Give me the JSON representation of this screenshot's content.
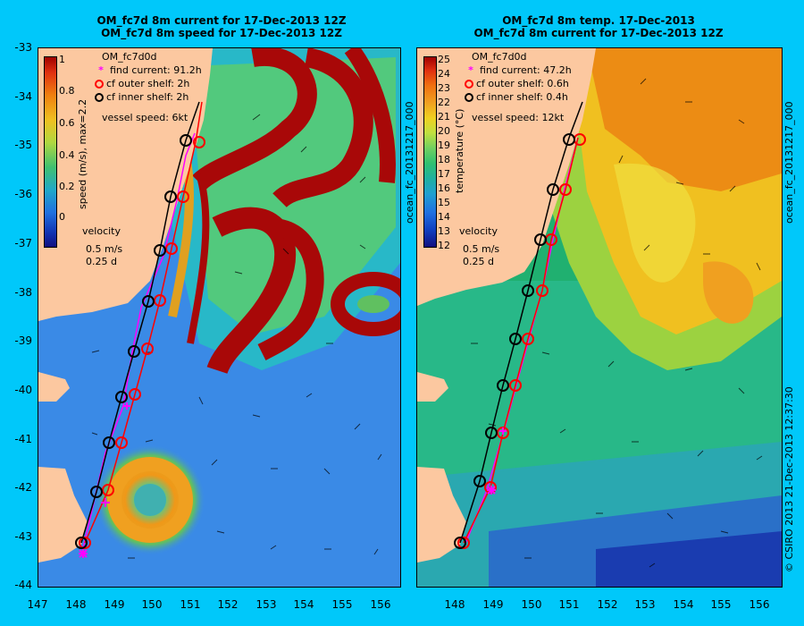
{
  "left": {
    "title1": "OM_fc7d 8m current for 17-Dec-2013 12Z",
    "title2": "OM_fc7d 8m speed for 17-Dec-2013 12Z",
    "model": "OM_fc7d0d",
    "legend": [
      "find current: 91.2h",
      "cf outer shelf: 2h",
      "cf inner shelf: 2h"
    ],
    "vessel": "vessel speed: 6kt",
    "cbar_label": "speed (m/s),  max=2.2",
    "cbar_ticks": [
      "1",
      "0.8",
      "0.6",
      "0.4",
      "0.2",
      "0"
    ],
    "velocity": "velocity",
    "vel_scale": "0.5 m/s",
    "vel_time": "0.25 d"
  },
  "right": {
    "title1": "OM_fc7d 8m temp. 17-Dec-2013",
    "title2": "OM_fc7d 8m current for 17-Dec-2013 12Z",
    "model": "OM_fc7d0d",
    "legend": [
      "find current: 47.2h",
      "cf outer shelf: 0.6h",
      "cf inner shelf: 0.4h"
    ],
    "vessel": "vessel speed: 12kt",
    "cbar_label": "temperature (°C)",
    "cbar_ticks": [
      "25",
      "24",
      "23",
      "22",
      "21",
      "20",
      "19",
      "18",
      "17",
      "16",
      "15",
      "14",
      "13",
      "12"
    ],
    "velocity": "velocity",
    "vel_scale": "0.5 m/s",
    "vel_time": "0.25 d"
  },
  "side_left": "ocean_fc_20131217_000",
  "side_right": "ocean_fc_20131217_000",
  "copyright": "© CSIRO 2013   21-Dec-2013 12:37:30",
  "axes": {
    "y_ticks": [
      "-33",
      "-34",
      "-35",
      "-36",
      "-37",
      "-38",
      "-39",
      "-40",
      "-41",
      "-42",
      "-43",
      "-44"
    ],
    "x_ticks": [
      "147",
      "148",
      "149",
      "150",
      "151",
      "152",
      "153",
      "154",
      "155",
      "156"
    ]
  },
  "colors": {
    "background": "#00c8fa",
    "land": "#fcc8a0",
    "find": "#ff00ff",
    "outer": "#ff0000",
    "inner": "#000000"
  }
}
